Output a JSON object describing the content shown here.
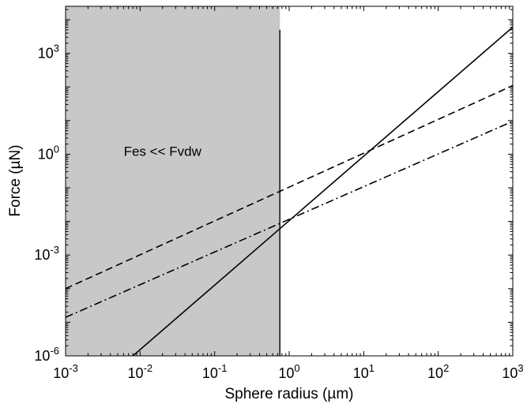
{
  "chart_data": {
    "type": "line",
    "xlabel": "Sphere radius (µm)",
    "ylabel": "Force (µN)",
    "x_scale": "log",
    "y_scale": "log",
    "xlim": [
      0.001,
      1000
    ],
    "ylim": [
      1e-06,
      25000
    ],
    "grid": false,
    "x_ticks": [
      {
        "value": 0.001,
        "base": "10",
        "exp": "-3"
      },
      {
        "value": 0.01,
        "base": "10",
        "exp": "-2"
      },
      {
        "value": 0.1,
        "base": "10",
        "exp": "-1"
      },
      {
        "value": 1,
        "base": "10",
        "exp": "0"
      },
      {
        "value": 10,
        "base": "10",
        "exp": "1"
      },
      {
        "value": 100,
        "base": "10",
        "exp": "2"
      },
      {
        "value": 1000,
        "base": "10",
        "exp": "3"
      }
    ],
    "y_ticks": [
      {
        "value": 1e-06,
        "base": "10",
        "exp": "-6"
      },
      {
        "value": 0.001,
        "base": "10",
        "exp": "-3"
      },
      {
        "value": 1,
        "base": "10",
        "exp": "0"
      },
      {
        "value": 1000,
        "base": "10",
        "exp": "3"
      }
    ],
    "shaded_region": {
      "x_from": 0.001,
      "x_to": 0.75,
      "color": "#c8c8c8",
      "label": "Fes << Fvdw",
      "label_pos": {
        "x": 0.02,
        "y": 0.9
      }
    },
    "vertical_line": {
      "x": 0.75,
      "y_top": 5000
    },
    "series": [
      {
        "style": "solid",
        "points": [
          {
            "x": 0.008,
            "y": 1e-06
          },
          {
            "x": 1000,
            "y": 6000
          }
        ]
      },
      {
        "style": "dashed",
        "points": [
          {
            "x": 0.001,
            "y": 0.0001
          },
          {
            "x": 1000,
            "y": 110
          }
        ]
      },
      {
        "style": "dashdot",
        "points": [
          {
            "x": 0.001,
            "y": 1.4e-05
          },
          {
            "x": 1000,
            "y": 9.5
          }
        ]
      }
    ]
  }
}
